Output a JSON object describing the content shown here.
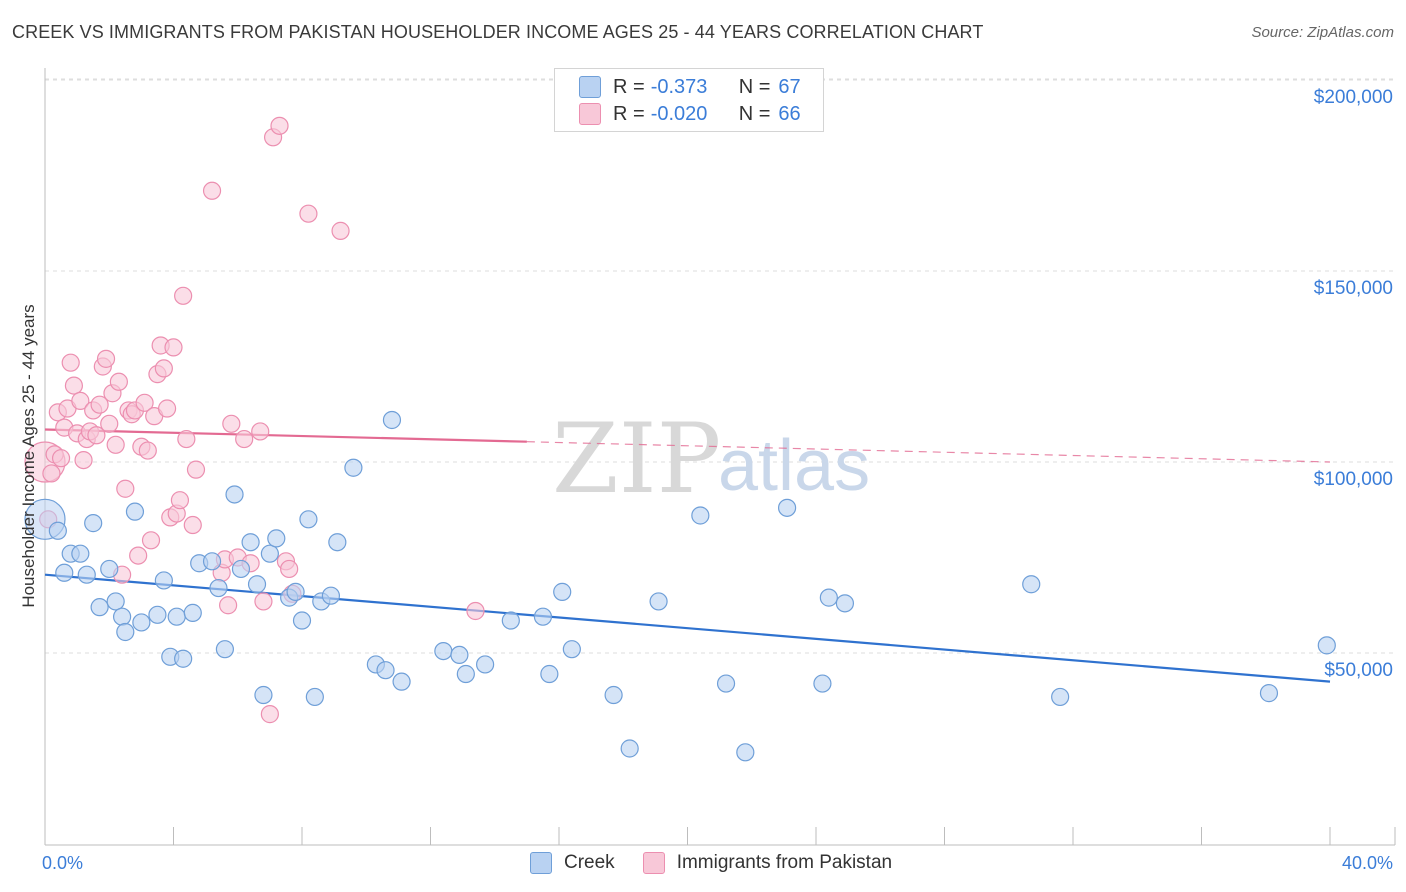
{
  "title": "CREEK VS IMMIGRANTS FROM PAKISTAN HOUSEHOLDER INCOME AGES 25 - 44 YEARS CORRELATION CHART",
  "source": "Source: ZipAtlas.com",
  "watermark": {
    "zip": "ZIP",
    "atlas": "atlas"
  },
  "legend": {
    "rows": [
      {
        "r_label": "R =",
        "r_value": "-0.373",
        "n_label": "N =",
        "n_value": "67"
      },
      {
        "r_label": "R =",
        "r_value": "-0.020",
        "n_label": "N =",
        "n_value": "66"
      }
    ]
  },
  "colors": {
    "creek_fill": "#b9d2f2",
    "creek_stroke": "#6f9fd8",
    "creek_line": "#2f72cf",
    "pak_fill": "#f8c8d8",
    "pak_stroke": "#ec8fb0",
    "pak_line": "#e36a92",
    "grid": "#dedede",
    "axis_text": "#3b7dd8"
  },
  "chart_data": {
    "type": "scatter",
    "title": "CREEK VS IMMIGRANTS FROM PAKISTAN HOUSEHOLDER INCOME AGES 25 - 44 YEARS CORRELATION CHART",
    "xlabel": "",
    "ylabel": "Householder Income Ages 25 - 44 years",
    "xlim": [
      0,
      40
    ],
    "ylim": [
      0,
      210000
    ],
    "x_tick_labels": [
      "0.0%",
      "40.0%"
    ],
    "y_ticks": [
      50000,
      100000,
      150000,
      200000
    ],
    "y_tick_labels": [
      "$50,000",
      "$100,000",
      "$150,000",
      "$200,000"
    ],
    "grid": true,
    "series": [
      {
        "name": "Creek",
        "r": -0.373,
        "n": 67,
        "trend": {
          "x": [
            0,
            40
          ],
          "y": [
            70500,
            42500
          ],
          "dashed_from": null
        },
        "points": [
          {
            "x": 0.0,
            "y": 85000,
            "big": true
          },
          {
            "x": 0.4,
            "y": 82000
          },
          {
            "x": 0.6,
            "y": 71000
          },
          {
            "x": 0.8,
            "y": 76000
          },
          {
            "x": 1.1,
            "y": 76000
          },
          {
            "x": 1.3,
            "y": 70500
          },
          {
            "x": 1.5,
            "y": 84000
          },
          {
            "x": 1.7,
            "y": 62000
          },
          {
            "x": 2.0,
            "y": 72000
          },
          {
            "x": 2.2,
            "y": 63500
          },
          {
            "x": 2.4,
            "y": 59500
          },
          {
            "x": 2.5,
            "y": 55500
          },
          {
            "x": 2.8,
            "y": 87000
          },
          {
            "x": 3.0,
            "y": 58000
          },
          {
            "x": 3.5,
            "y": 60000
          },
          {
            "x": 3.7,
            "y": 69000
          },
          {
            "x": 3.9,
            "y": 49000
          },
          {
            "x": 4.1,
            "y": 59500
          },
          {
            "x": 4.3,
            "y": 48500
          },
          {
            "x": 4.6,
            "y": 60500
          },
          {
            "x": 4.8,
            "y": 73500
          },
          {
            "x": 5.2,
            "y": 74000
          },
          {
            "x": 5.4,
            "y": 67000
          },
          {
            "x": 5.6,
            "y": 51000
          },
          {
            "x": 5.9,
            "y": 91500
          },
          {
            "x": 6.1,
            "y": 72000
          },
          {
            "x": 6.4,
            "y": 79000
          },
          {
            "x": 6.6,
            "y": 68000
          },
          {
            "x": 6.8,
            "y": 39000
          },
          {
            "x": 7.0,
            "y": 76000
          },
          {
            "x": 7.2,
            "y": 80000
          },
          {
            "x": 7.6,
            "y": 64500
          },
          {
            "x": 7.8,
            "y": 66000
          },
          {
            "x": 8.0,
            "y": 58500
          },
          {
            "x": 8.2,
            "y": 85000
          },
          {
            "x": 8.4,
            "y": 38500
          },
          {
            "x": 8.6,
            "y": 63500
          },
          {
            "x": 8.9,
            "y": 65000
          },
          {
            "x": 9.1,
            "y": 79000
          },
          {
            "x": 9.6,
            "y": 98500
          },
          {
            "x": 10.3,
            "y": 47000
          },
          {
            "x": 10.6,
            "y": 45500
          },
          {
            "x": 10.8,
            "y": 111000
          },
          {
            "x": 11.1,
            "y": 42500
          },
          {
            "x": 12.4,
            "y": 50500
          },
          {
            "x": 12.9,
            "y": 49500
          },
          {
            "x": 13.1,
            "y": 44500
          },
          {
            "x": 13.7,
            "y": 47000
          },
          {
            "x": 14.5,
            "y": 58500
          },
          {
            "x": 15.5,
            "y": 59500
          },
          {
            "x": 15.7,
            "y": 44500
          },
          {
            "x": 16.1,
            "y": 66000
          },
          {
            "x": 16.4,
            "y": 51000
          },
          {
            "x": 17.7,
            "y": 39000
          },
          {
            "x": 18.2,
            "y": 25000
          },
          {
            "x": 19.1,
            "y": 63500
          },
          {
            "x": 20.4,
            "y": 86000
          },
          {
            "x": 21.2,
            "y": 42000
          },
          {
            "x": 21.8,
            "y": 24000
          },
          {
            "x": 23.1,
            "y": 88000
          },
          {
            "x": 24.2,
            "y": 42000
          },
          {
            "x": 24.4,
            "y": 64500
          },
          {
            "x": 24.9,
            "y": 63000
          },
          {
            "x": 30.7,
            "y": 68000
          },
          {
            "x": 31.6,
            "y": 38500
          },
          {
            "x": 38.1,
            "y": 39500
          },
          {
            "x": 39.9,
            "y": 52000
          }
        ]
      },
      {
        "name": "Immigrants from Pakistan",
        "r": -0.02,
        "n": 66,
        "trend": {
          "x": [
            0,
            40
          ],
          "y": [
            108500,
            100000
          ],
          "dashed_from": 15
        },
        "points": [
          {
            "x": 0.0,
            "y": 100000,
            "big": true
          },
          {
            "x": 0.1,
            "y": 85000
          },
          {
            "x": 0.2,
            "y": 97000
          },
          {
            "x": 0.3,
            "y": 102000
          },
          {
            "x": 0.4,
            "y": 113000
          },
          {
            "x": 0.5,
            "y": 101000
          },
          {
            "x": 0.6,
            "y": 109000
          },
          {
            "x": 0.7,
            "y": 114000
          },
          {
            "x": 0.8,
            "y": 126000
          },
          {
            "x": 0.9,
            "y": 120000
          },
          {
            "x": 1.0,
            "y": 107500
          },
          {
            "x": 1.1,
            "y": 116000
          },
          {
            "x": 1.2,
            "y": 100500
          },
          {
            "x": 1.3,
            "y": 106000
          },
          {
            "x": 1.4,
            "y": 108000
          },
          {
            "x": 1.5,
            "y": 113500
          },
          {
            "x": 1.6,
            "y": 107000
          },
          {
            "x": 1.7,
            "y": 115000
          },
          {
            "x": 1.8,
            "y": 125000
          },
          {
            "x": 1.9,
            "y": 127000
          },
          {
            "x": 2.0,
            "y": 110000
          },
          {
            "x": 2.1,
            "y": 118000
          },
          {
            "x": 2.2,
            "y": 104500
          },
          {
            "x": 2.3,
            "y": 121000
          },
          {
            "x": 2.4,
            "y": 70500
          },
          {
            "x": 2.5,
            "y": 93000
          },
          {
            "x": 2.6,
            "y": 113500
          },
          {
            "x": 2.7,
            "y": 112500
          },
          {
            "x": 2.8,
            "y": 113500
          },
          {
            "x": 2.9,
            "y": 75500
          },
          {
            "x": 3.0,
            "y": 104000
          },
          {
            "x": 3.1,
            "y": 115500
          },
          {
            "x": 3.2,
            "y": 103000
          },
          {
            "x": 3.3,
            "y": 79500
          },
          {
            "x": 3.4,
            "y": 112000
          },
          {
            "x": 3.5,
            "y": 123000
          },
          {
            "x": 3.6,
            "y": 130500
          },
          {
            "x": 3.7,
            "y": 124500
          },
          {
            "x": 3.8,
            "y": 114000
          },
          {
            "x": 3.9,
            "y": 85500
          },
          {
            "x": 4.0,
            "y": 130000
          },
          {
            "x": 4.1,
            "y": 86500
          },
          {
            "x": 4.2,
            "y": 90000
          },
          {
            "x": 4.3,
            "y": 143500
          },
          {
            "x": 4.4,
            "y": 106000
          },
          {
            "x": 4.6,
            "y": 83500
          },
          {
            "x": 4.7,
            "y": 98000
          },
          {
            "x": 5.2,
            "y": 171000
          },
          {
            "x": 5.5,
            "y": 71000
          },
          {
            "x": 5.6,
            "y": 74500
          },
          {
            "x": 5.7,
            "y": 62500
          },
          {
            "x": 5.8,
            "y": 110000
          },
          {
            "x": 6.0,
            "y": 75000
          },
          {
            "x": 6.2,
            "y": 106000
          },
          {
            "x": 6.4,
            "y": 73500
          },
          {
            "x": 6.7,
            "y": 108000
          },
          {
            "x": 6.8,
            "y": 63500
          },
          {
            "x": 7.0,
            "y": 34000
          },
          {
            "x": 7.1,
            "y": 185000
          },
          {
            "x": 7.3,
            "y": 188000
          },
          {
            "x": 7.5,
            "y": 74000
          },
          {
            "x": 7.6,
            "y": 72000
          },
          {
            "x": 7.7,
            "y": 65500
          },
          {
            "x": 8.2,
            "y": 165000
          },
          {
            "x": 9.2,
            "y": 160500
          },
          {
            "x": 13.4,
            "y": 61000
          }
        ]
      }
    ]
  },
  "bottom_legend": [
    {
      "label": "Creek"
    },
    {
      "label": "Immigrants from Pakistan"
    }
  ]
}
